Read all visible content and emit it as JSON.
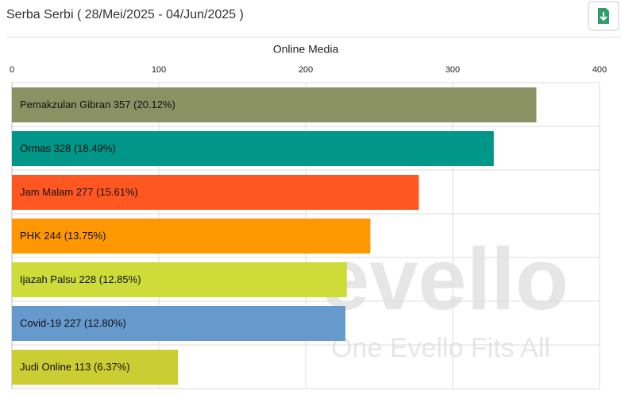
{
  "header": {
    "title": "Serba Serbi ( 28/Mei/2025 - 04/Jun/2025 )"
  },
  "watermark": {
    "logo": "evello",
    "tagline": "One Evello Fits All"
  },
  "chart_data": {
    "type": "bar",
    "orientation": "horizontal",
    "title": "Online Media",
    "categories": [
      "Pemakzulan Gibran",
      "Ormas",
      "Jam Malam",
      "PHK",
      "Ijazah Palsu",
      "Covid-19",
      "Judi Online"
    ],
    "values": [
      357,
      328,
      277,
      244,
      228,
      227,
      113
    ],
    "percent_labels": [
      "(20.12%)",
      "(18.49%)",
      "(15.61%)",
      "(13.75%)",
      "(12.85%)",
      "(12.80%)",
      "(6.37%)"
    ],
    "colors": [
      "#8a9163",
      "#009688",
      "#ff5722",
      "#ff9800",
      "#cddc39",
      "#6699cc",
      "#cccc33"
    ],
    "xlim": [
      0,
      400
    ],
    "xticks": [
      0,
      100,
      200,
      300,
      400
    ],
    "grid": true
  }
}
